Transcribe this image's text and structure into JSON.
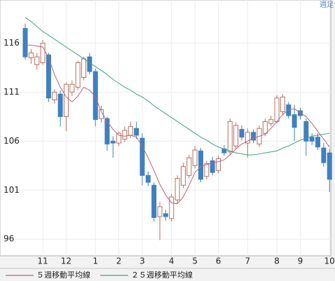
{
  "chart_data": {
    "type": "candlestick",
    "annotation": "週足",
    "categories": [
      null,
      null,
      null,
      "11",
      null,
      null,
      null,
      "12",
      null,
      null,
      null,
      null,
      "1",
      null,
      null,
      null,
      "2",
      null,
      null,
      null,
      "3",
      null,
      null,
      null,
      null,
      "4",
      null,
      null,
      null,
      "5",
      null,
      null,
      null,
      "6",
      null,
      null,
      null,
      null,
      "7",
      null,
      null,
      null,
      null,
      "8",
      null,
      null,
      null,
      "9",
      null,
      null,
      null,
      null,
      "10"
    ],
    "open": [
      117.5,
      114.5,
      113.8,
      114.0,
      114.8,
      110.2,
      110.8,
      108.5,
      111.0,
      111.5,
      112.5,
      114.6,
      113.1,
      108.3,
      108.3,
      106.0,
      105.8,
      106.2,
      106.6,
      107.3,
      106.3,
      102.5,
      101.5,
      98.3,
      98.6,
      98.1,
      100.0,
      101.5,
      102.5,
      103.5,
      105.0,
      102.4,
      104.0,
      103.0,
      105.2,
      104.9,
      105.5,
      107.2,
      105.8,
      106.9,
      105.7,
      106.8,
      107.8,
      108.0,
      109.0,
      109.7,
      108.7,
      109.1,
      108.0,
      106.4,
      106.4,
      105.3,
      104.8
    ],
    "high": [
      118.0,
      115.4,
      115.0,
      116.3,
      115.0,
      111.3,
      111.2,
      112.0,
      112.2,
      114.2,
      114.6,
      115.0,
      113.4,
      109.6,
      108.5,
      106.5,
      107.0,
      107.5,
      108.0,
      108.0,
      106.8,
      102.9,
      101.8,
      99.8,
      99.0,
      100.6,
      102.5,
      103.8,
      104.6,
      105.5,
      105.3,
      104.0,
      104.4,
      104.5,
      105.6,
      108.3,
      107.9,
      107.6,
      107.3,
      107.2,
      107.6,
      108.3,
      108.6,
      110.7,
      110.8,
      110.0,
      109.7,
      109.4,
      108.3,
      106.8,
      106.8,
      105.8,
      105.2
    ],
    "low": [
      114.3,
      113.9,
      113.3,
      113.8,
      110.0,
      109.8,
      107.5,
      107.0,
      110.6,
      111.2,
      112.2,
      112.8,
      107.5,
      107.9,
      105.0,
      104.3,
      105.5,
      105.9,
      106.3,
      106.2,
      101.5,
      101.4,
      97.8,
      95.9,
      97.9,
      97.8,
      99.6,
      101.2,
      102.2,
      103.2,
      101.8,
      102.1,
      102.5,
      102.7,
      104.5,
      104.6,
      105.2,
      106.1,
      104.3,
      105.8,
      105.4,
      106.5,
      107.5,
      107.8,
      108.7,
      108.3,
      106.0,
      108.2,
      104.5,
      105.6,
      105.1,
      103.4,
      100.8
    ],
    "close": [
      114.6,
      115.0,
      114.6,
      116.0,
      110.4,
      111.0,
      108.5,
      111.8,
      111.8,
      114.0,
      114.4,
      113.1,
      108.2,
      109.2,
      105.7,
      105.8,
      106.8,
      107.1,
      107.5,
      106.6,
      102.5,
      101.8,
      98.2,
      99.3,
      98.3,
      100.3,
      102.2,
      103.4,
      104.3,
      105.1,
      102.1,
      103.7,
      102.8,
      104.2,
      104.8,
      108.0,
      107.6,
      106.4,
      106.9,
      106.1,
      107.3,
      108.0,
      108.2,
      110.4,
      110.5,
      108.6,
      107.4,
      108.6,
      106.0,
      106.0,
      105.4,
      103.8,
      102.1
    ],
    "up_color": "#b8705f",
    "down_color": "#3f80bf",
    "series": [
      {
        "name": "５週移動平均線",
        "color": "#c0607a",
        "values": [
          115.8,
          115.8,
          115.7,
          115.6,
          114.5,
          112.8,
          111.5,
          110.5,
          110.0,
          110.6,
          111.5,
          111.2,
          110.5,
          109.0,
          108.0,
          107.2,
          106.6,
          106.5,
          106.6,
          106.4,
          105.5,
          104.3,
          103.0,
          101.6,
          100.5,
          99.7,
          99.6,
          100.3,
          101.5,
          102.8,
          103.4,
          103.6,
          103.8,
          103.9,
          104.1,
          104.6,
          105.2,
          105.7,
          106.0,
          106.3,
          106.5,
          106.7,
          107.3,
          108.0,
          108.7,
          109.2,
          109.3,
          108.9,
          108.5,
          107.8,
          107.0,
          106.2,
          105.4
        ]
      },
      {
        "name": "２５週移動平均線",
        "color": "#3aa57a",
        "values": [
          118.6,
          118.2,
          117.7,
          117.2,
          116.8,
          116.4,
          116.0,
          115.6,
          115.2,
          114.8,
          114.4,
          114.0,
          113.6,
          113.2,
          112.8,
          112.3,
          111.9,
          111.5,
          111.2,
          110.8,
          110.5,
          110.1,
          109.6,
          109.2,
          108.8,
          108.4,
          108.0,
          107.6,
          107.2,
          106.8,
          106.4,
          106.1,
          105.7,
          105.4,
          105.2,
          105.0,
          104.8,
          104.7,
          104.6,
          104.6,
          104.7,
          104.8,
          104.9,
          105.0,
          105.3,
          105.5,
          105.8,
          106.1,
          106.3,
          106.5,
          106.6,
          106.7,
          106.8
        ]
      }
    ],
    "ylim": [
      94.3,
      120.4
    ],
    "yticks": [
      96,
      101,
      106,
      111,
      116
    ],
    "grid": true
  }
}
